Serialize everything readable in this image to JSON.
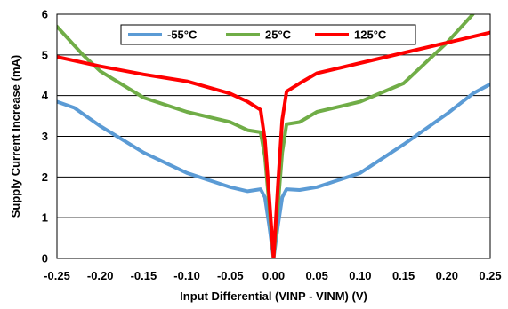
{
  "chart_data": {
    "type": "line",
    "title": "",
    "xlabel": "Input Differential (VINP - VINM) (V)",
    "ylabel": "Supply Current Increase (mA)",
    "xlim": [
      -0.25,
      0.25
    ],
    "ylim": [
      0,
      6
    ],
    "xticks": [
      -0.25,
      -0.2,
      -0.15,
      -0.1,
      -0.05,
      0.0,
      0.05,
      0.1,
      0.15,
      0.2,
      0.25
    ],
    "xtick_labels": [
      "-0.25",
      "-0.20",
      "-0.15",
      "-0.10",
      "-0.05",
      "0.00",
      "0.05",
      "0.10",
      "0.15",
      "0.20",
      "0.25"
    ],
    "yticks": [
      0,
      1,
      2,
      3,
      4,
      5,
      6
    ],
    "ytick_labels": [
      "0",
      "1",
      "2",
      "3",
      "4",
      "5",
      "6"
    ],
    "grid": "horizontal",
    "legend_position": "top-center",
    "series": [
      {
        "name": "-55°C",
        "color": "#5B9BD5",
        "x": [
          -0.25,
          -0.23,
          -0.2,
          -0.15,
          -0.1,
          -0.05,
          -0.03,
          -0.015,
          -0.01,
          -0.005,
          0.0,
          0.005,
          0.01,
          0.015,
          0.03,
          0.05,
          0.1,
          0.15,
          0.2,
          0.23,
          0.25
        ],
        "y": [
          3.85,
          3.7,
          3.25,
          2.6,
          2.1,
          1.75,
          1.65,
          1.7,
          1.5,
          0.8,
          0.0,
          0.8,
          1.5,
          1.7,
          1.68,
          1.75,
          2.1,
          2.8,
          3.55,
          4.05,
          4.28
        ]
      },
      {
        "name": "25°C",
        "color": "#70AD47",
        "x": [
          -0.25,
          -0.22,
          -0.2,
          -0.15,
          -0.1,
          -0.05,
          -0.03,
          -0.015,
          -0.01,
          -0.005,
          0.0,
          0.005,
          0.01,
          0.015,
          0.03,
          0.05,
          0.1,
          0.15,
          0.2,
          0.23
        ],
        "y": [
          5.7,
          5.0,
          4.6,
          3.95,
          3.6,
          3.35,
          3.15,
          3.1,
          2.5,
          1.3,
          0.0,
          1.3,
          2.6,
          3.3,
          3.35,
          3.6,
          3.85,
          4.3,
          5.3,
          6.0
        ]
      },
      {
        "name": "125°C",
        "color": "#FF0000",
        "x": [
          -0.25,
          -0.2,
          -0.15,
          -0.1,
          -0.05,
          -0.03,
          -0.015,
          -0.01,
          -0.005,
          0.0,
          0.005,
          0.01,
          0.015,
          0.03,
          0.05,
          0.1,
          0.15,
          0.2,
          0.25
        ],
        "y": [
          4.95,
          4.72,
          4.52,
          4.35,
          4.05,
          3.85,
          3.65,
          2.9,
          1.5,
          0.0,
          1.8,
          3.4,
          4.1,
          4.3,
          4.55,
          4.8,
          5.05,
          5.3,
          5.55
        ]
      }
    ]
  }
}
